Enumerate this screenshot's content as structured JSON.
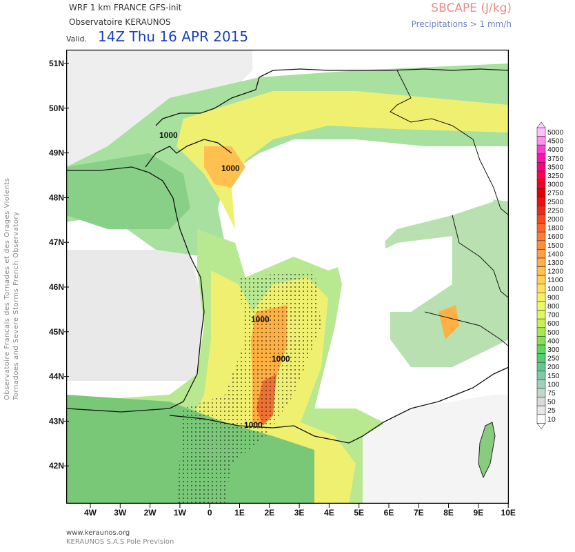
{
  "header": {
    "model": "WRF 1 km FRANCE   GFS-init",
    "observatory": "Observatoire KERAUNOS",
    "valid_label": "Valid.",
    "valid_time": "14Z Thu 16 APR 2015",
    "parameter": "SBCAPE (J/kg)",
    "precip_note": "Precipitations > 1 mm/h"
  },
  "side": {
    "line1": "Observatoire Francais des Tornades et des Orages Violents",
    "line2": "Tornadoes and Severe Storms French Observatory"
  },
  "footer": {
    "url": "www.keraunos.org",
    "company": "KERAUNOS S.A.S Pole Prevision"
  },
  "axes": {
    "lat_labels": [
      "51N",
      "50N",
      "49N",
      "48N",
      "47N",
      "46N",
      "45N",
      "44N",
      "43N",
      "42N"
    ],
    "lon_labels": [
      "4W",
      "3W",
      "2W",
      "1W",
      "0",
      "1E",
      "2E",
      "3E",
      "4E",
      "5E",
      "6E",
      "7E",
      "8E",
      "9E",
      "10E"
    ]
  },
  "map_labels": {
    "contour": "1000"
  },
  "legend": {
    "levels": [
      "5000",
      "4500",
      "4000",
      "3750",
      "3500",
      "3250",
      "3000",
      "2750",
      "2500",
      "2250",
      "2000",
      "1800",
      "1600",
      "1500",
      "1400",
      "1300",
      "1200",
      "1100",
      "1000",
      "900",
      "800",
      "700",
      "600",
      "500",
      "400",
      "300",
      "250",
      "200",
      "150",
      "100",
      "75",
      "50",
      "25",
      "10"
    ],
    "colors": [
      "#ffc0ff",
      "#ff90f0",
      "#ff40d0",
      "#ff10b0",
      "#ff0080",
      "#ff0050",
      "#f00020",
      "#e00000",
      "#e81010",
      "#f02818",
      "#f84820",
      "#ff6428",
      "#ff7c30",
      "#ff9038",
      "#ffa040",
      "#ffb048",
      "#ffc050",
      "#ffd058",
      "#ffe060",
      "#f8f060",
      "#f0f860",
      "#e0f860",
      "#c8f058",
      "#a8e850",
      "#88e050",
      "#60d860",
      "#50d070",
      "#60c890",
      "#80c8a8",
      "#a0d0b8",
      "#c0d8c8",
      "#d8dcd8",
      "#e8e8e8",
      "#ffffff"
    ]
  }
}
